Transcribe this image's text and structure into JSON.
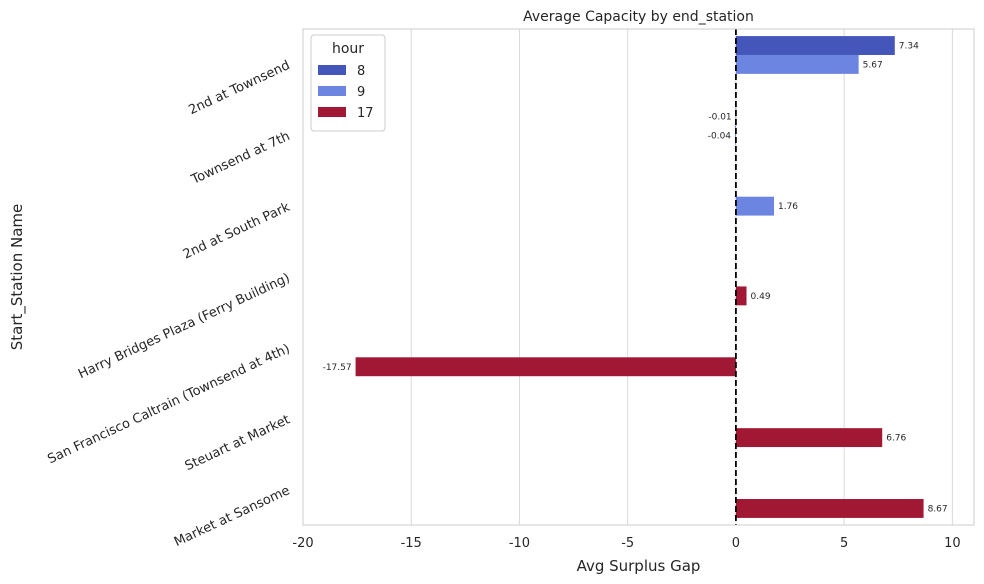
{
  "chart_data": {
    "type": "bar",
    "orientation": "horizontal",
    "title": "Average Capacity by end_station",
    "xlabel": "Avg Surplus Gap",
    "ylabel": "Start_Station Name",
    "xlim": [
      -20,
      11
    ],
    "xticks": [
      -20,
      -15,
      -10,
      -5,
      0,
      5,
      10
    ],
    "grid": "vertical",
    "reference_line": 0,
    "categories": [
      "2nd at Townsend",
      "Townsend at 7th",
      "2nd at South Park",
      "Harry Bridges Plaza (Ferry Building)",
      "San Francisco Caltrain (Townsend at 4th)",
      "Steuart at Market",
      "Market at Sansome"
    ],
    "legend": {
      "title": "hour",
      "placement": "upper-left"
    },
    "series": [
      {
        "name": "8",
        "color": "#4456BA",
        "values": [
          7.34,
          -0.01,
          null,
          null,
          null,
          null,
          null
        ],
        "labels": [
          "7.34",
          "-0.01",
          "",
          "",
          "",
          "",
          ""
        ]
      },
      {
        "name": "9",
        "color": "#6C85E0",
        "values": [
          5.67,
          -0.04,
          1.76,
          null,
          null,
          null,
          null
        ],
        "labels": [
          "5.67",
          "-0.04",
          "1.76",
          "",
          "",
          "",
          ""
        ]
      },
      {
        "name": "17",
        "color": "#A01834",
        "values": [
          null,
          null,
          null,
          0.49,
          -17.57,
          6.76,
          8.67
        ],
        "labels": [
          "",
          "",
          "",
          "0.49",
          "-17.57",
          "6.76",
          "8.67"
        ]
      }
    ]
  }
}
